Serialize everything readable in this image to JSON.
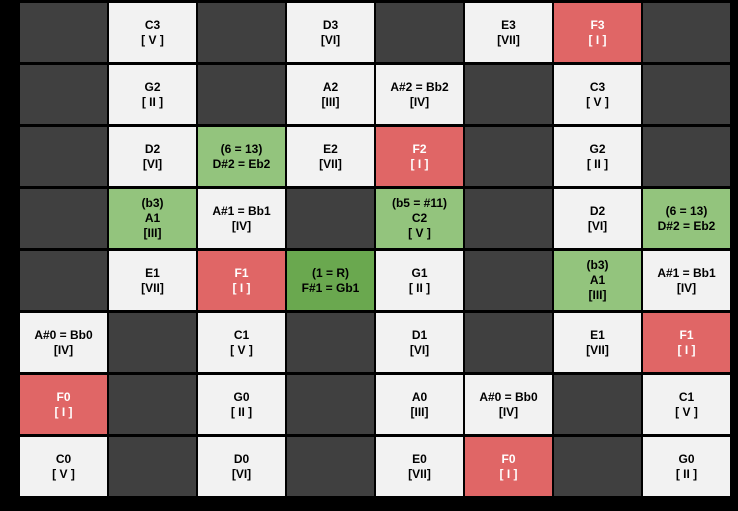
{
  "board": {
    "colors": {
      "empty": "#404040",
      "note": "#f2f2f2",
      "root": "#e06666",
      "interval": "#93c47d",
      "tonic": "#6aa84f"
    },
    "rows": [
      [
        null,
        {
          "kind": "note",
          "lines": [
            "C3",
            "[ V ]"
          ]
        },
        null,
        {
          "kind": "note",
          "lines": [
            "D3",
            "[VI]"
          ]
        },
        null,
        {
          "kind": "note",
          "lines": [
            "E3",
            "[VII]"
          ]
        },
        {
          "kind": "root",
          "lines": [
            "F3",
            "[ I ]"
          ]
        },
        null
      ],
      [
        null,
        {
          "kind": "note",
          "lines": [
            "G2",
            "[ II ]"
          ]
        },
        null,
        {
          "kind": "note",
          "lines": [
            "A2",
            "[III]"
          ]
        },
        {
          "kind": "note",
          "lines": [
            "A#2 = Bb2",
            "[IV]"
          ]
        },
        null,
        {
          "kind": "note",
          "lines": [
            "C3",
            "[ V ]"
          ]
        },
        null
      ],
      [
        null,
        {
          "kind": "note",
          "lines": [
            "D2",
            "[VI]"
          ]
        },
        {
          "kind": "interval",
          "lines": [
            "(6 = 13)",
            "D#2 = Eb2"
          ]
        },
        {
          "kind": "note",
          "lines": [
            "E2",
            "[VII]"
          ]
        },
        {
          "kind": "root",
          "lines": [
            "F2",
            "[ I ]"
          ]
        },
        null,
        {
          "kind": "note",
          "lines": [
            "G2",
            "[ II ]"
          ]
        },
        null
      ],
      [
        null,
        {
          "kind": "interval",
          "lines": [
            "(b3)",
            "A1",
            "[III]"
          ]
        },
        {
          "kind": "note",
          "lines": [
            "A#1 = Bb1",
            "[IV]"
          ]
        },
        null,
        {
          "kind": "interval",
          "lines": [
            "(b5 = #11)",
            "C2",
            "[ V ]"
          ]
        },
        null,
        {
          "kind": "note",
          "lines": [
            "D2",
            "[VI]"
          ]
        },
        {
          "kind": "interval",
          "lines": [
            "(6 = 13)",
            "D#2 = Eb2"
          ]
        }
      ],
      [
        null,
        {
          "kind": "note",
          "lines": [
            "E1",
            "[VII]"
          ]
        },
        {
          "kind": "root",
          "lines": [
            "F1",
            "[ I ]"
          ]
        },
        {
          "kind": "tonic",
          "lines": [
            "(1 = R)",
            "F#1 = Gb1"
          ]
        },
        {
          "kind": "note",
          "lines": [
            "G1",
            "[ II ]"
          ]
        },
        null,
        {
          "kind": "interval",
          "lines": [
            "(b3)",
            "A1",
            "[III]"
          ]
        },
        {
          "kind": "note",
          "lines": [
            "A#1 = Bb1",
            "[IV]"
          ]
        }
      ],
      [
        {
          "kind": "note",
          "lines": [
            "A#0 = Bb0",
            "[IV]"
          ]
        },
        null,
        {
          "kind": "note",
          "lines": [
            "C1",
            "[ V ]"
          ]
        },
        null,
        {
          "kind": "note",
          "lines": [
            "D1",
            "[VI]"
          ]
        },
        null,
        {
          "kind": "note",
          "lines": [
            "E1",
            "[VII]"
          ]
        },
        {
          "kind": "root",
          "lines": [
            "F1",
            "[ I ]"
          ]
        }
      ],
      [
        {
          "kind": "root",
          "lines": [
            "F0",
            "[ I ]"
          ]
        },
        null,
        {
          "kind": "note",
          "lines": [
            "G0",
            "[ II ]"
          ]
        },
        null,
        {
          "kind": "note",
          "lines": [
            "A0",
            "[III]"
          ]
        },
        {
          "kind": "note",
          "lines": [
            "A#0 = Bb0",
            "[IV]"
          ]
        },
        null,
        {
          "kind": "note",
          "lines": [
            "C1",
            "[ V ]"
          ]
        }
      ],
      [
        {
          "kind": "note",
          "lines": [
            "C0",
            "[ V ]"
          ]
        },
        null,
        {
          "kind": "note",
          "lines": [
            "D0",
            "[VI]"
          ]
        },
        null,
        {
          "kind": "note",
          "lines": [
            "E0",
            "[VII]"
          ]
        },
        {
          "kind": "root",
          "lines": [
            "F0",
            "[ I ]"
          ]
        },
        null,
        {
          "kind": "note",
          "lines": [
            "G0",
            "[ II ]"
          ]
        }
      ]
    ]
  }
}
